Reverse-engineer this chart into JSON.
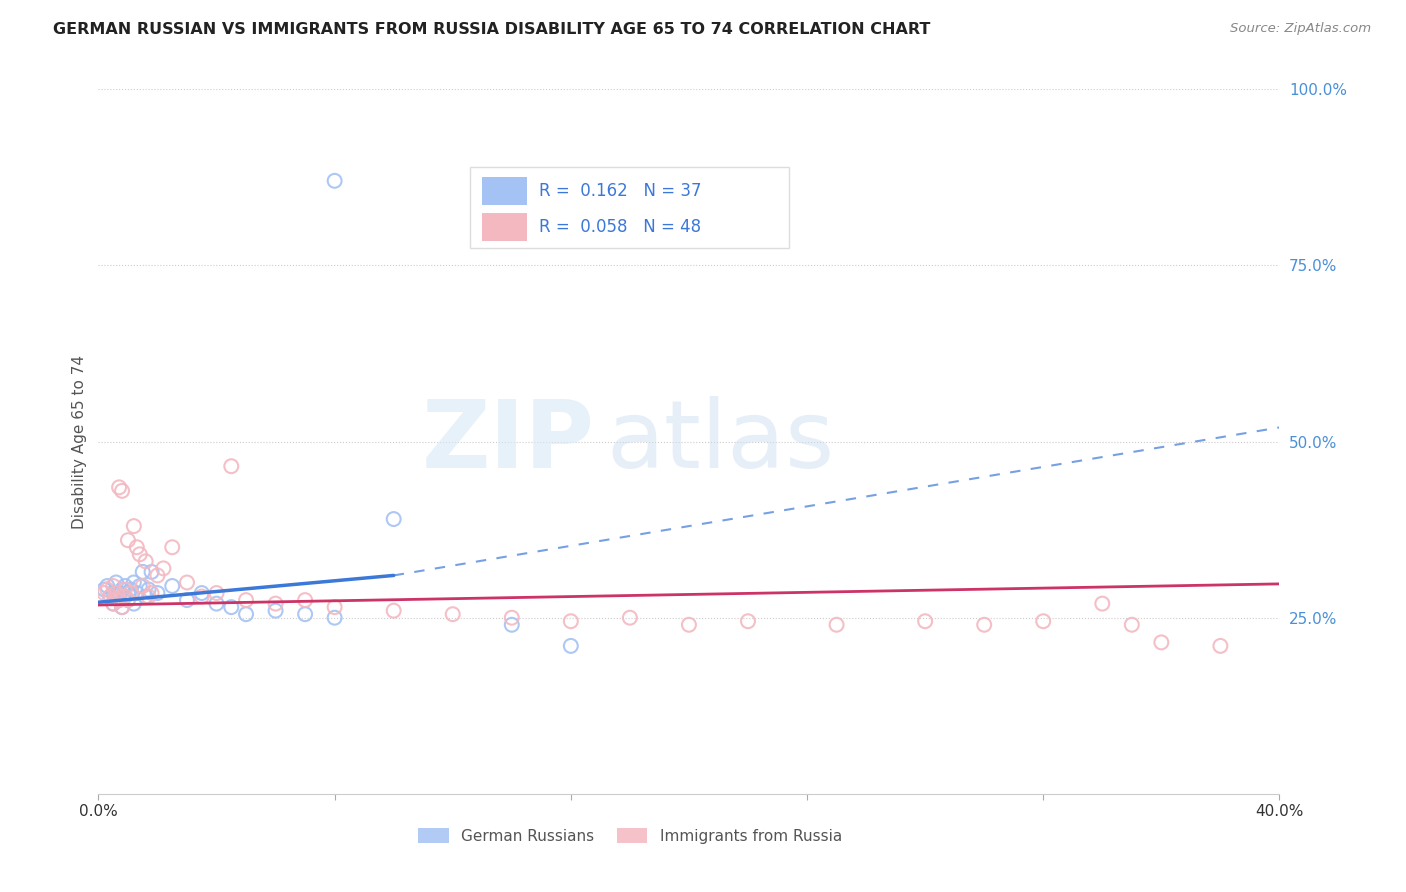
{
  "title": "GERMAN RUSSIAN VS IMMIGRANTS FROM RUSSIA DISABILITY AGE 65 TO 74 CORRELATION CHART",
  "source": "Source: ZipAtlas.com",
  "ylabel": "Disability Age 65 to 74",
  "xlim": [
    0.0,
    0.4
  ],
  "ylim": [
    0.0,
    1.0
  ],
  "xticks": [
    0.0,
    0.08,
    0.16,
    0.24,
    0.32,
    0.4
  ],
  "xticklabels": [
    "0.0%",
    "",
    "",
    "",
    "",
    "40.0%"
  ],
  "yticks_right": [
    0.0,
    0.25,
    0.5,
    0.75,
    1.0
  ],
  "yticklabels_right": [
    "",
    "25.0%",
    "50.0%",
    "75.0%",
    "100.0%"
  ],
  "legend1_R": "0.162",
  "legend1_N": "37",
  "legend2_R": "0.058",
  "legend2_N": "48",
  "legend_label1": "German Russians",
  "legend_label2": "Immigrants from Russia",
  "watermark_zip": "ZIP",
  "watermark_atlas": "atlas",
  "blue_color": "#a4c2f4",
  "pink_color": "#f4b8c1",
  "blue_line_color": "#3c78d8",
  "pink_line_color": "#cc3366",
  "blue_scatter": [
    [
      0.002,
      0.29
    ],
    [
      0.003,
      0.295
    ],
    [
      0.004,
      0.28
    ],
    [
      0.005,
      0.285
    ],
    [
      0.005,
      0.27
    ],
    [
      0.006,
      0.3
    ],
    [
      0.007,
      0.285
    ],
    [
      0.007,
      0.275
    ],
    [
      0.008,
      0.29
    ],
    [
      0.008,
      0.265
    ],
    [
      0.009,
      0.295
    ],
    [
      0.009,
      0.28
    ],
    [
      0.01,
      0.285
    ],
    [
      0.01,
      0.275
    ],
    [
      0.011,
      0.29
    ],
    [
      0.012,
      0.3
    ],
    [
      0.012,
      0.27
    ],
    [
      0.013,
      0.285
    ],
    [
      0.014,
      0.295
    ],
    [
      0.015,
      0.315
    ],
    [
      0.016,
      0.28
    ],
    [
      0.017,
      0.29
    ],
    [
      0.018,
      0.315
    ],
    [
      0.02,
      0.285
    ],
    [
      0.025,
      0.295
    ],
    [
      0.03,
      0.275
    ],
    [
      0.035,
      0.285
    ],
    [
      0.04,
      0.27
    ],
    [
      0.045,
      0.265
    ],
    [
      0.05,
      0.255
    ],
    [
      0.06,
      0.26
    ],
    [
      0.07,
      0.255
    ],
    [
      0.08,
      0.25
    ],
    [
      0.1,
      0.39
    ],
    [
      0.14,
      0.24
    ],
    [
      0.16,
      0.21
    ],
    [
      0.08,
      0.87
    ]
  ],
  "pink_scatter": [
    [
      0.002,
      0.285
    ],
    [
      0.003,
      0.29
    ],
    [
      0.004,
      0.28
    ],
    [
      0.005,
      0.295
    ],
    [
      0.005,
      0.27
    ],
    [
      0.006,
      0.285
    ],
    [
      0.007,
      0.275
    ],
    [
      0.007,
      0.435
    ],
    [
      0.008,
      0.43
    ],
    [
      0.008,
      0.265
    ],
    [
      0.009,
      0.29
    ],
    [
      0.009,
      0.28
    ],
    [
      0.01,
      0.36
    ],
    [
      0.01,
      0.275
    ],
    [
      0.011,
      0.285
    ],
    [
      0.012,
      0.38
    ],
    [
      0.013,
      0.35
    ],
    [
      0.014,
      0.34
    ],
    [
      0.015,
      0.295
    ],
    [
      0.016,
      0.33
    ],
    [
      0.017,
      0.28
    ],
    [
      0.018,
      0.285
    ],
    [
      0.02,
      0.31
    ],
    [
      0.022,
      0.32
    ],
    [
      0.025,
      0.35
    ],
    [
      0.03,
      0.3
    ],
    [
      0.035,
      0.28
    ],
    [
      0.04,
      0.285
    ],
    [
      0.045,
      0.465
    ],
    [
      0.05,
      0.275
    ],
    [
      0.06,
      0.27
    ],
    [
      0.07,
      0.275
    ],
    [
      0.08,
      0.265
    ],
    [
      0.1,
      0.26
    ],
    [
      0.12,
      0.255
    ],
    [
      0.14,
      0.25
    ],
    [
      0.16,
      0.245
    ],
    [
      0.18,
      0.25
    ],
    [
      0.2,
      0.24
    ],
    [
      0.22,
      0.245
    ],
    [
      0.25,
      0.24
    ],
    [
      0.28,
      0.245
    ],
    [
      0.3,
      0.24
    ],
    [
      0.32,
      0.245
    ],
    [
      0.34,
      0.27
    ],
    [
      0.35,
      0.24
    ],
    [
      0.36,
      0.215
    ],
    [
      0.38,
      0.21
    ]
  ],
  "blue_trendline_solid": [
    [
      0.0,
      0.272
    ],
    [
      0.1,
      0.31
    ]
  ],
  "blue_trendline_dashed": [
    [
      0.1,
      0.31
    ],
    [
      0.4,
      0.52
    ]
  ],
  "pink_trendline": [
    [
      0.0,
      0.268
    ],
    [
      0.4,
      0.298
    ]
  ],
  "background_color": "#ffffff",
  "grid_color": "#cccccc",
  "grid_linestyle": "dotted"
}
